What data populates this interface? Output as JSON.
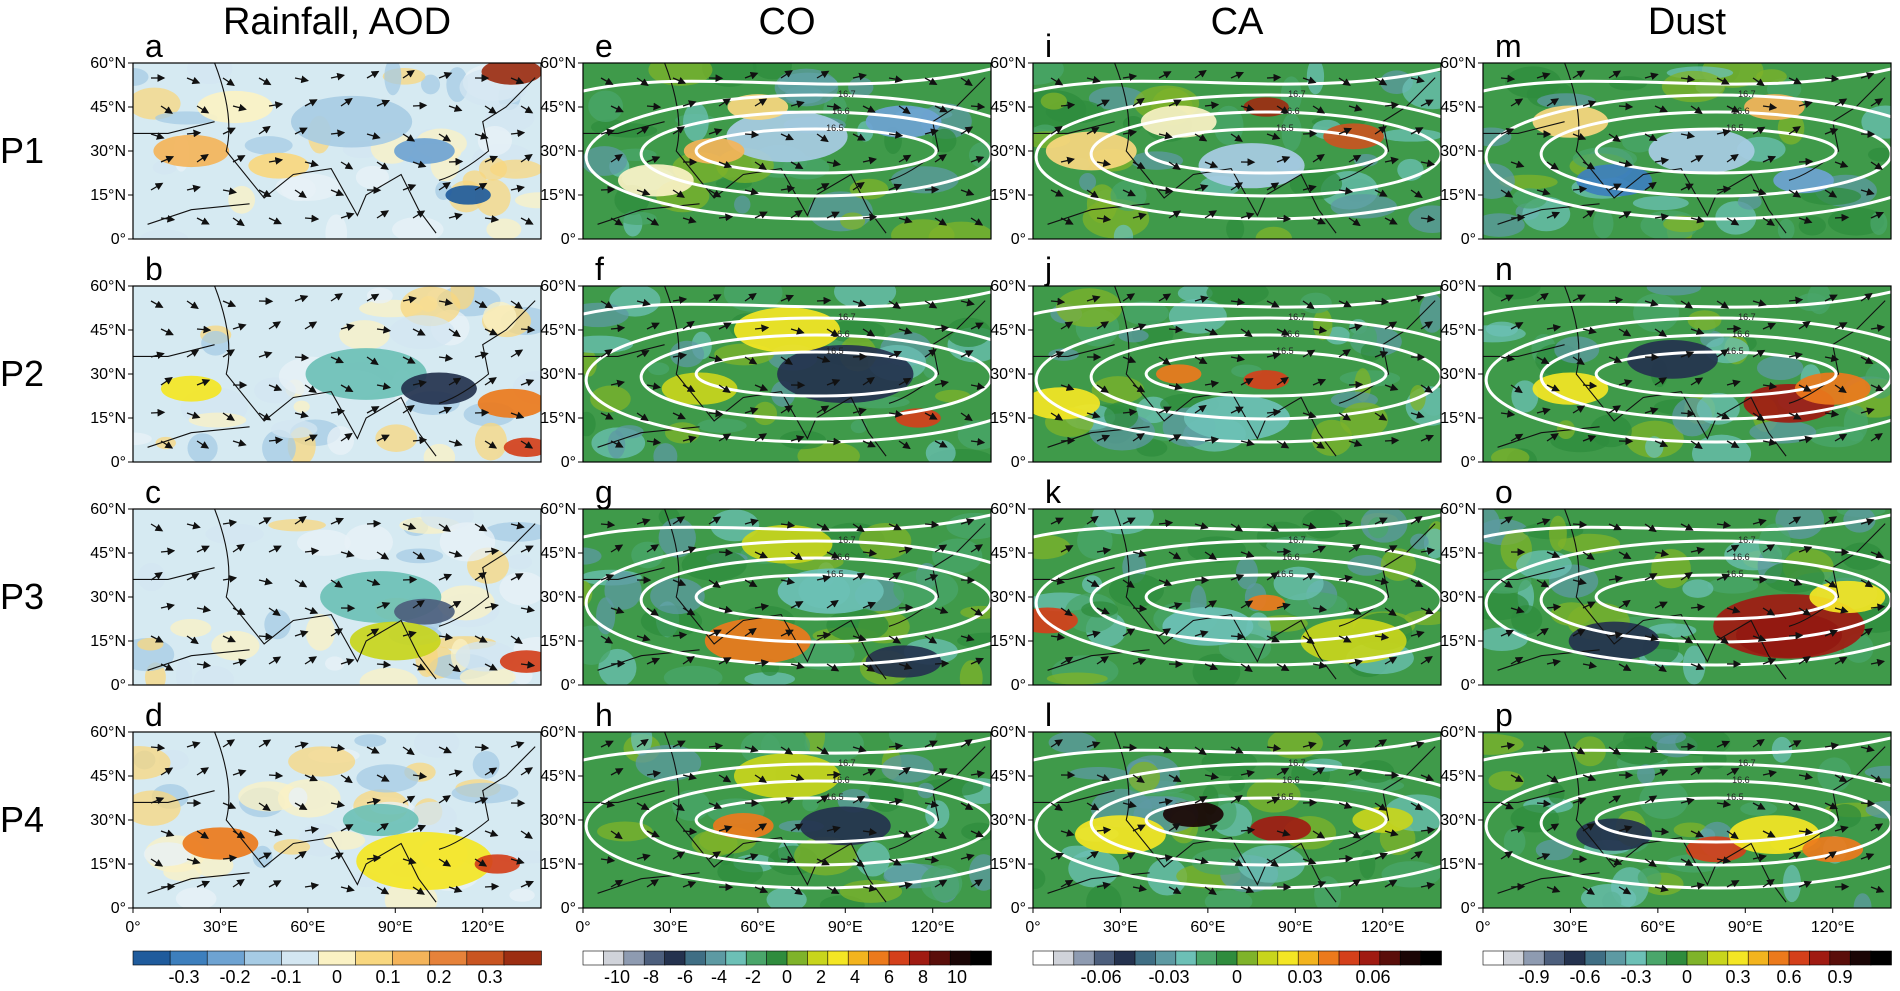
{
  "chart_data": {
    "type": "heatmap",
    "columns": [
      {
        "title": "Rainfall, AOD",
        "letters": [
          "a",
          "b",
          "c",
          "d"
        ]
      },
      {
        "title": "CO",
        "letters": [
          "e",
          "f",
          "g",
          "h"
        ]
      },
      {
        "title": "CA",
        "letters": [
          "i",
          "j",
          "k",
          "l"
        ]
      },
      {
        "title": "Dust",
        "letters": [
          "m",
          "n",
          "o",
          "p"
        ]
      }
    ],
    "rows": [
      "P1",
      "P2",
      "P3",
      "P4"
    ],
    "lat_ticks": [
      "60°N",
      "45°N",
      "30°N",
      "15°N",
      "0°"
    ],
    "lon_ticks": [
      "0°",
      "30°E",
      "60°E",
      "90°E",
      "120°E"
    ],
    "lon_range": [
      0,
      140
    ],
    "lat_range": [
      0,
      60
    ],
    "contour_labels": [
      "16.5",
      "16.6",
      "16.7"
    ],
    "colorbars": [
      {
        "ticks": [
          "-0.3",
          "-0.2",
          "-0.1",
          "0",
          "0.1",
          "0.2",
          "0.3"
        ],
        "colors": [
          "#1f5b9c",
          "#3d7fbd",
          "#6ea3d2",
          "#a6cbe4",
          "#d3e6f1",
          "#fbf2c4",
          "#f8d77f",
          "#f4b45a",
          "#e6823a",
          "#c95521",
          "#9c2e12"
        ]
      },
      {
        "ticks": [
          "-10",
          "-8",
          "-6",
          "-4",
          "-2",
          "0",
          "2",
          "4",
          "6",
          "8",
          "10"
        ],
        "colors": [
          "#ffffff",
          "#d0d3da",
          "#8e9bb1",
          "#4d5f7d",
          "#24324e",
          "#3f6e84",
          "#5d9aa3",
          "#6cc0b6",
          "#4aa66b",
          "#2f8c3d",
          "#7fb32a",
          "#c8d51c",
          "#f4e624",
          "#f3b41e",
          "#ec7a1c",
          "#d4401b",
          "#a01b12",
          "#5a0e0a",
          "#1a0505",
          "#000000"
        ]
      },
      {
        "ticks": [
          "-0.06",
          "-0.03",
          "0",
          "0.03",
          "0.06"
        ],
        "colors": [
          "#ffffff",
          "#d0d3da",
          "#8e9bb1",
          "#4d5f7d",
          "#24324e",
          "#3f6e84",
          "#5d9aa3",
          "#6cc0b6",
          "#4aa66b",
          "#2f8c3d",
          "#7fb32a",
          "#c8d51c",
          "#f4e624",
          "#f3b41e",
          "#ec7a1c",
          "#d4401b",
          "#a01b12",
          "#5a0e0a",
          "#1a0505",
          "#000000"
        ]
      },
      {
        "ticks": [
          "-0.9",
          "-0.6",
          "-0.3",
          "0",
          "0.3",
          "0.6",
          "0.9"
        ],
        "colors": [
          "#ffffff",
          "#d0d3da",
          "#8e9bb1",
          "#4d5f7d",
          "#24324e",
          "#3f6e84",
          "#5d9aa3",
          "#6cc0b6",
          "#4aa66b",
          "#2f8c3d",
          "#7fb32a",
          "#c8d51c",
          "#f4e624",
          "#f3b41e",
          "#ec7a1c",
          "#d4401b",
          "#a01b12",
          "#5a0e0a",
          "#1a0505",
          "#000000"
        ]
      }
    ],
    "panels": {
      "bg": [
        "#d6eaf2",
        "#3f9a4a",
        "#3f9a4a",
        "#3f9a4a"
      ],
      "blobs": [
        [
          [
            {
              "lon": 75,
              "lat": 40,
              "r": 16,
              "c": "#a8cce4"
            },
            {
              "lon": 100,
              "lat": 30,
              "r": 8,
              "c": "#6ea3d2"
            },
            {
              "lon": 20,
              "lat": 30,
              "r": 10,
              "c": "#f4b45a"
            },
            {
              "lon": 50,
              "lat": 25,
              "r": 8,
              "c": "#f8d77f"
            },
            {
              "lon": 130,
              "lat": 57,
              "r": 8,
              "c": "#9c2e12"
            },
            {
              "lon": 115,
              "lat": 15,
              "r": 6,
              "c": "#1f5b9c"
            },
            {
              "lon": 35,
              "lat": 45,
              "r": 10,
              "c": "#fbf2c4"
            }
          ],
          [
            {
              "lon": 80,
              "lat": 30,
              "r": 16,
              "c": "#6cc0b6"
            },
            {
              "lon": 105,
              "lat": 25,
              "r": 10,
              "c": "#24324e"
            },
            {
              "lon": 130,
              "lat": 20,
              "r": 9,
              "c": "#ec7a1c"
            },
            {
              "lon": 135,
              "lat": 5,
              "r": 6,
              "c": "#d4401b"
            },
            {
              "lon": 20,
              "lat": 25,
              "r": 8,
              "c": "#f4e624"
            }
          ],
          [
            {
              "lon": 85,
              "lat": 30,
              "r": 16,
              "c": "#6cc0b6"
            },
            {
              "lon": 100,
              "lat": 25,
              "r": 8,
              "c": "#4d5f7d"
            },
            {
              "lon": 90,
              "lat": 15,
              "r": 12,
              "c": "#c8d51c"
            },
            {
              "lon": 135,
              "lat": 8,
              "r": 7,
              "c": "#d4401b"
            }
          ],
          [
            {
              "lon": 30,
              "lat": 22,
              "r": 10,
              "c": "#ec7a1c"
            },
            {
              "lon": 100,
              "lat": 16,
              "r": 18,
              "c": "#f4e624"
            },
            {
              "lon": 125,
              "lat": 15,
              "r": 6,
              "c": "#d4401b"
            },
            {
              "lon": 85,
              "lat": 30,
              "r": 10,
              "c": "#6cc0b6"
            }
          ]
        ],
        [
          [
            {
              "lon": 70,
              "lat": 35,
              "r": 16,
              "c": "#a8cce4"
            },
            {
              "lon": 110,
              "lat": 40,
              "r": 10,
              "c": "#6ea3d2"
            },
            {
              "lon": 45,
              "lat": 30,
              "r": 8,
              "c": "#f4b45a"
            },
            {
              "lon": 60,
              "lat": 45,
              "r": 8,
              "c": "#f8d77f"
            },
            {
              "lon": 25,
              "lat": 20,
              "r": 10,
              "c": "#fbf2c4"
            }
          ],
          [
            {
              "lon": 90,
              "lat": 30,
              "r": 18,
              "c": "#24324e"
            },
            {
              "lon": 70,
              "lat": 45,
              "r": 14,
              "c": "#f4e624"
            },
            {
              "lon": 115,
              "lat": 15,
              "r": 6,
              "c": "#d4401b"
            },
            {
              "lon": 40,
              "lat": 25,
              "r": 10,
              "c": "#c8d51c"
            }
          ],
          [
            {
              "lon": 85,
              "lat": 32,
              "r": 14,
              "c": "#6cc0b6"
            },
            {
              "lon": 60,
              "lat": 15,
              "r": 14,
              "c": "#ec7a1c"
            },
            {
              "lon": 110,
              "lat": 8,
              "r": 10,
              "c": "#24324e"
            },
            {
              "lon": 70,
              "lat": 48,
              "r": 12,
              "c": "#c8d51c"
            }
          ],
          [
            {
              "lon": 90,
              "lat": 28,
              "r": 12,
              "c": "#24324e"
            },
            {
              "lon": 55,
              "lat": 28,
              "r": 8,
              "c": "#ec7a1c"
            },
            {
              "lon": 70,
              "lat": 45,
              "r": 14,
              "c": "#c8d51c"
            }
          ]
        ],
        [
          [
            {
              "lon": 80,
              "lat": 45,
              "r": 6,
              "c": "#9c2e12"
            },
            {
              "lon": 110,
              "lat": 35,
              "r": 8,
              "c": "#c95521"
            },
            {
              "lon": 20,
              "lat": 30,
              "r": 12,
              "c": "#f8d77f"
            },
            {
              "lon": 75,
              "lat": 25,
              "r": 14,
              "c": "#a8cce4"
            },
            {
              "lon": 50,
              "lat": 40,
              "r": 10,
              "c": "#fbf2c4"
            }
          ],
          [
            {
              "lon": 80,
              "lat": 28,
              "r": 6,
              "c": "#d4401b"
            },
            {
              "lon": 50,
              "lat": 30,
              "r": 6,
              "c": "#ec7a1c"
            },
            {
              "lon": 10,
              "lat": 20,
              "r": 10,
              "c": "#f4e624"
            },
            {
              "lon": 70,
              "lat": 15,
              "r": 14,
              "c": "#6cc0b6"
            }
          ],
          [
            {
              "lon": 5,
              "lat": 22,
              "r": 8,
              "c": "#d4401b"
            },
            {
              "lon": 80,
              "lat": 28,
              "r": 5,
              "c": "#ec7a1c"
            },
            {
              "lon": 110,
              "lat": 15,
              "r": 14,
              "c": "#c8d51c"
            },
            {
              "lon": 60,
              "lat": 20,
              "r": 12,
              "c": "#6cc0b6"
            }
          ],
          [
            {
              "lon": 55,
              "lat": 32,
              "r": 8,
              "c": "#1a0505"
            },
            {
              "lon": 85,
              "lat": 27,
              "r": 8,
              "c": "#a01b12"
            },
            {
              "lon": 30,
              "lat": 25,
              "r": 12,
              "c": "#f4e624"
            },
            {
              "lon": 120,
              "lat": 30,
              "r": 8,
              "c": "#c8d51c"
            }
          ]
        ],
        [
          [
            {
              "lon": 45,
              "lat": 20,
              "r": 10,
              "c": "#3d7fbd"
            },
            {
              "lon": 75,
              "lat": 30,
              "r": 14,
              "c": "#a8cce4"
            },
            {
              "lon": 30,
              "lat": 40,
              "r": 10,
              "c": "#f8d77f"
            },
            {
              "lon": 110,
              "lat": 20,
              "r": 8,
              "c": "#6ea3d2"
            },
            {
              "lon": 100,
              "lat": 45,
              "r": 8,
              "c": "#f4b45a"
            }
          ],
          [
            {
              "lon": 105,
              "lat": 20,
              "r": 12,
              "c": "#a01b12"
            },
            {
              "lon": 120,
              "lat": 25,
              "r": 10,
              "c": "#ec7a1c"
            },
            {
              "lon": 65,
              "lat": 35,
              "r": 12,
              "c": "#24324e"
            },
            {
              "lon": 30,
              "lat": 25,
              "r": 10,
              "c": "#f4e624"
            }
          ],
          [
            {
              "lon": 105,
              "lat": 17,
              "r": 14,
              "c": "#000000"
            },
            {
              "lon": 105,
              "lat": 20,
              "r": 20,
              "c": "#a01b12"
            },
            {
              "lon": 45,
              "lat": 15,
              "r": 12,
              "c": "#24324e"
            },
            {
              "lon": 125,
              "lat": 30,
              "r": 10,
              "c": "#f4e624"
            }
          ],
          [
            {
              "lon": 80,
              "lat": 20,
              "r": 8,
              "c": "#d4401b"
            },
            {
              "lon": 100,
              "lat": 25,
              "r": 12,
              "c": "#f4e624"
            },
            {
              "lon": 45,
              "lat": 25,
              "r": 10,
              "c": "#24324e"
            },
            {
              "lon": 120,
              "lat": 20,
              "r": 8,
              "c": "#ec7a1c"
            }
          ]
        ]
      ]
    }
  }
}
